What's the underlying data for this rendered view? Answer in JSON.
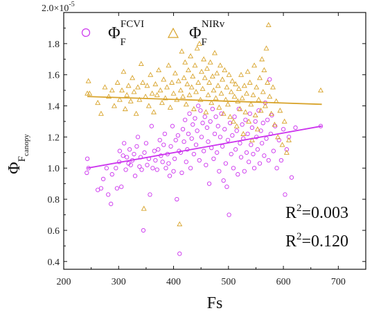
{
  "chart_data": {
    "type": "scatter",
    "xlabel": "Fs",
    "ylabel_main": "Φ",
    "ylabel_sub1": "F",
    "ylabel_sub2": "canopy",
    "y_multiplier": "2.0×10",
    "y_multiplier_exp": "-5",
    "xlim": [
      200,
      750
    ],
    "ylim": [
      0.35,
      2.0
    ],
    "x_ticks": [
      200,
      300,
      400,
      500,
      600,
      700
    ],
    "y_ticks": [
      0.4,
      0.6,
      0.8,
      1.0,
      1.2,
      1.4,
      1.6,
      1.8
    ],
    "y_tick_labels": [
      "0.4",
      "0.6",
      "0.8",
      "1.0",
      "1.2",
      "1.4",
      "1.6",
      "1.8"
    ],
    "x_tick_labels": [
      "200",
      "300",
      "400",
      "500",
      "600",
      "700"
    ],
    "grid": false,
    "legend_placement": "top-left",
    "series": [
      {
        "name": "Φ_F^FCVI",
        "legend_main": "Φ",
        "legend_sub": "F",
        "legend_sup": "FCVI",
        "marker": "circle",
        "color": "#cc33ee",
        "r2_label": "R",
        "r2_value": "=0.120",
        "fit": {
          "x": [
            243,
            670
          ],
          "y": [
            1.0,
            1.27
          ]
        },
        "points": [
          [
            242,
            0.97
          ],
          [
            243,
            1.06
          ],
          [
            245,
            1.0
          ],
          [
            262,
            0.86
          ],
          [
            268,
            0.87
          ],
          [
            272,
            0.93
          ],
          [
            278,
            1.0
          ],
          [
            281,
            0.83
          ],
          [
            286,
            0.77
          ],
          [
            288,
            0.96
          ],
          [
            295,
            1.0
          ],
          [
            297,
            0.87
          ],
          [
            301,
            1.04
          ],
          [
            302,
            1.11
          ],
          [
            305,
            0.88
          ],
          [
            308,
            1.08
          ],
          [
            310,
            1.16
          ],
          [
            313,
            0.99
          ],
          [
            315,
            1.07
          ],
          [
            318,
            1.03
          ],
          [
            320,
            1.12
          ],
          [
            322,
            1.02
          ],
          [
            325,
            1.05
          ],
          [
            328,
            1.09
          ],
          [
            330,
            0.95
          ],
          [
            333,
            1.14
          ],
          [
            335,
            1.2
          ],
          [
            338,
            1.01
          ],
          [
            340,
            1.07
          ],
          [
            342,
            0.99
          ],
          [
            345,
            0.6
          ],
          [
            347,
            1.1
          ],
          [
            350,
            1.16
          ],
          [
            352,
            1.02
          ],
          [
            355,
            1.06
          ],
          [
            357,
            0.83
          ],
          [
            360,
            1.27
          ],
          [
            362,
            1.0
          ],
          [
            365,
            1.11
          ],
          [
            367,
            1.05
          ],
          [
            370,
            0.99
          ],
          [
            372,
            1.12
          ],
          [
            375,
            1.18
          ],
          [
            377,
            1.08
          ],
          [
            380,
            1.04
          ],
          [
            382,
            1.15
          ],
          [
            384,
            1.22
          ],
          [
            386,
            1.0
          ],
          [
            389,
            1.09
          ],
          [
            391,
            1.03
          ],
          [
            393,
            0.95
          ],
          [
            395,
            1.14
          ],
          [
            398,
            1.27
          ],
          [
            400,
            0.98
          ],
          [
            402,
            1.06
          ],
          [
            404,
            1.18
          ],
          [
            406,
            0.8
          ],
          [
            408,
            1.21
          ],
          [
            410,
            1.11
          ],
          [
            411,
            0.45
          ],
          [
            413,
            1.1
          ],
          [
            415,
            0.97
          ],
          [
            417,
            1.25
          ],
          [
            419,
            1.17
          ],
          [
            421,
            1.31
          ],
          [
            423,
            1.04
          ],
          [
            425,
            1.12
          ],
          [
            427,
            1.22
          ],
          [
            429,
            1.35
          ],
          [
            431,
            1.0
          ],
          [
            433,
            1.19
          ],
          [
            435,
            1.28
          ],
          [
            437,
            1.09
          ],
          [
            439,
            1.32
          ],
          [
            441,
            1.15
          ],
          [
            443,
            1.24
          ],
          [
            445,
            1.4
          ],
          [
            447,
            1.05
          ],
          [
            449,
            1.37
          ],
          [
            451,
            1.2
          ],
          [
            453,
            1.29
          ],
          [
            455,
            1.11
          ],
          [
            457,
            1.33
          ],
          [
            459,
            1.02
          ],
          [
            461,
            1.26
          ],
          [
            463,
            1.17
          ],
          [
            465,
            0.9
          ],
          [
            467,
            1.3
          ],
          [
            469,
            1.13
          ],
          [
            471,
            1.38
          ],
          [
            473,
            1.06
          ],
          [
            475,
            1.22
          ],
          [
            477,
            1.33
          ],
          [
            479,
            1.1
          ],
          [
            481,
            1.27
          ],
          [
            483,
            0.98
          ],
          [
            485,
            1.2
          ],
          [
            487,
            1.35
          ],
          [
            489,
            1.14
          ],
          [
            491,
            0.92
          ],
          [
            493,
            1.25
          ],
          [
            495,
            1.03
          ],
          [
            497,
            0.88
          ],
          [
            499,
            1.18
          ],
          [
            501,
            0.7
          ],
          [
            503,
            1.29
          ],
          [
            505,
            1.09
          ],
          [
            507,
            1.21
          ],
          [
            509,
            1.0
          ],
          [
            511,
            1.33
          ],
          [
            513,
            1.12
          ],
          [
            515,
            1.24
          ],
          [
            517,
            0.96
          ],
          [
            519,
            1.38
          ],
          [
            521,
            1.16
          ],
          [
            523,
            1.07
          ],
          [
            525,
            1.28
          ],
          [
            527,
            1.19
          ],
          [
            529,
            0.98
          ],
          [
            531,
            1.31
          ],
          [
            533,
            1.1
          ],
          [
            535,
            1.22
          ],
          [
            537,
            1.04
          ],
          [
            539,
            1.35
          ],
          [
            541,
            1.15
          ],
          [
            543,
            1.26
          ],
          [
            545,
            1.09
          ],
          [
            547,
            1.0
          ],
          [
            549,
            1.3
          ],
          [
            551,
            1.2
          ],
          [
            553,
            1.12
          ],
          [
            555,
            1.37
          ],
          [
            557,
            1.03
          ],
          [
            559,
            1.24
          ],
          [
            561,
            1.16
          ],
          [
            563,
            1.29
          ],
          [
            565,
            1.08
          ],
          [
            567,
            1.42
          ],
          [
            569,
            1.19
          ],
          [
            571,
            1.31
          ],
          [
            573,
            1.05
          ],
          [
            575,
            1.57
          ],
          [
            577,
            1.22
          ],
          [
            579,
            1.34
          ],
          [
            582,
            1.11
          ],
          [
            585,
            1.27
          ],
          [
            588,
            1.0
          ],
          [
            592,
            1.18
          ],
          [
            596,
            1.05
          ],
          [
            600,
            1.25
          ],
          [
            603,
            0.83
          ],
          [
            606,
            1.12
          ],
          [
            610,
            1.2
          ],
          [
            615,
            0.94
          ],
          [
            622,
            1.26
          ],
          [
            668,
            1.27
          ]
        ]
      },
      {
        "name": "Φ_F^NIRv",
        "legend_main": "Φ",
        "legend_sub": "F",
        "legend_sup": "NIRv",
        "marker": "triangle",
        "color": "#d8a32a",
        "r2_label": "R",
        "r2_value": "=0.003",
        "fit": {
          "x": [
            243,
            670
          ],
          "y": [
            1.46,
            1.41
          ]
        },
        "points": [
          [
            243,
            1.48
          ],
          [
            245,
            1.56
          ],
          [
            247,
            1.48
          ],
          [
            262,
            1.42
          ],
          [
            268,
            1.35
          ],
          [
            275,
            1.52
          ],
          [
            282,
            1.46
          ],
          [
            288,
            1.5
          ],
          [
            292,
            1.4
          ],
          [
            298,
            1.55
          ],
          [
            302,
            1.44
          ],
          [
            306,
            1.5
          ],
          [
            309,
            1.62
          ],
          [
            312,
            1.38
          ],
          [
            315,
            1.47
          ],
          [
            318,
            1.53
          ],
          [
            322,
            1.43
          ],
          [
            325,
            1.58
          ],
          [
            328,
            1.49
          ],
          [
            332,
            1.35
          ],
          [
            335,
            1.52
          ],
          [
            338,
            1.44
          ],
          [
            341,
            1.67
          ],
          [
            344,
            1.55
          ],
          [
            346,
            0.74
          ],
          [
            349,
            1.46
          ],
          [
            352,
            1.53
          ],
          [
            355,
            1.4
          ],
          [
            358,
            1.6
          ],
          [
            361,
            1.48
          ],
          [
            364,
            1.36
          ],
          [
            367,
            1.54
          ],
          [
            370,
            1.47
          ],
          [
            373,
            1.63
          ],
          [
            376,
            1.5
          ],
          [
            379,
            1.42
          ],
          [
            382,
            1.57
          ],
          [
            385,
            1.45
          ],
          [
            388,
            1.52
          ],
          [
            391,
            1.66
          ],
          [
            394,
            1.39
          ],
          [
            397,
            1.55
          ],
          [
            400,
            1.48
          ],
          [
            403,
            1.61
          ],
          [
            406,
            1.44
          ],
          [
            409,
            1.56
          ],
          [
            411,
            0.64
          ],
          [
            413,
            1.5
          ],
          [
            415,
            1.75
          ],
          [
            417,
            1.46
          ],
          [
            419,
            1.58
          ],
          [
            421,
            1.68
          ],
          [
            423,
            1.41
          ],
          [
            425,
            1.54
          ],
          [
            427,
            1.63
          ],
          [
            429,
            1.47
          ],
          [
            431,
            1.72
          ],
          [
            433,
            1.52
          ],
          [
            435,
            1.59
          ],
          [
            437,
            1.38
          ],
          [
            439,
            1.66
          ],
          [
            441,
            1.49
          ],
          [
            443,
            1.77
          ],
          [
            445,
            1.55
          ],
          [
            447,
            1.8
          ],
          [
            449,
            1.44
          ],
          [
            451,
            1.62
          ],
          [
            453,
            1.51
          ],
          [
            455,
            1.7
          ],
          [
            457,
            1.58
          ],
          [
            459,
            1.36
          ],
          [
            461,
            1.64
          ],
          [
            463,
            1.47
          ],
          [
            465,
            1.55
          ],
          [
            467,
            1.68
          ],
          [
            469,
            1.42
          ],
          [
            471,
            1.59
          ],
          [
            473,
            1.5
          ],
          [
            475,
            1.74
          ],
          [
            477,
            1.45
          ],
          [
            479,
            1.61
          ],
          [
            481,
            1.53
          ],
          [
            483,
            1.39
          ],
          [
            485,
            1.66
          ],
          [
            487,
            1.48
          ],
          [
            489,
            1.57
          ],
          [
            491,
            1.35
          ],
          [
            493,
            1.63
          ],
          [
            495,
            1.44
          ],
          [
            497,
            1.52
          ],
          [
            499,
            1.41
          ],
          [
            501,
            1.6
          ],
          [
            503,
            1.33
          ],
          [
            505,
            1.49
          ],
          [
            507,
            1.56
          ],
          [
            509,
            1.3
          ],
          [
            511,
            1.46
          ],
          [
            513,
            1.54
          ],
          [
            515,
            1.27
          ],
          [
            517,
            1.43
          ],
          [
            519,
            1.51
          ],
          [
            521,
            1.38
          ],
          [
            523,
            1.6
          ],
          [
            525,
            1.45
          ],
          [
            527,
            1.22
          ],
          [
            529,
            1.53
          ],
          [
            531,
            1.36
          ],
          [
            533,
            1.48
          ],
          [
            535,
            1.62
          ],
          [
            537,
            1.3
          ],
          [
            539,
            1.55
          ],
          [
            541,
            1.41
          ],
          [
            543,
            1.18
          ],
          [
            545,
            1.47
          ],
          [
            547,
            1.66
          ],
          [
            549,
            1.34
          ],
          [
            551,
            1.52
          ],
          [
            553,
            1.25
          ],
          [
            555,
            1.44
          ],
          [
            557,
            1.58
          ],
          [
            559,
            1.37
          ],
          [
            561,
            1.7
          ],
          [
            563,
            1.49
          ],
          [
            565,
            1.63
          ],
          [
            567,
            1.4
          ],
          [
            569,
            1.77
          ],
          [
            571,
            1.55
          ],
          [
            573,
            1.92
          ],
          [
            575,
            1.46
          ],
          [
            578,
            1.35
          ],
          [
            581,
            1.52
          ],
          [
            584,
            1.28
          ],
          [
            587,
            1.43
          ],
          [
            590,
            1.2
          ],
          [
            594,
            1.37
          ],
          [
            598,
            1.15
          ],
          [
            602,
            1.3
          ],
          [
            606,
            1.1
          ],
          [
            610,
            1.18
          ],
          [
            668,
            1.5
          ]
        ]
      }
    ]
  }
}
